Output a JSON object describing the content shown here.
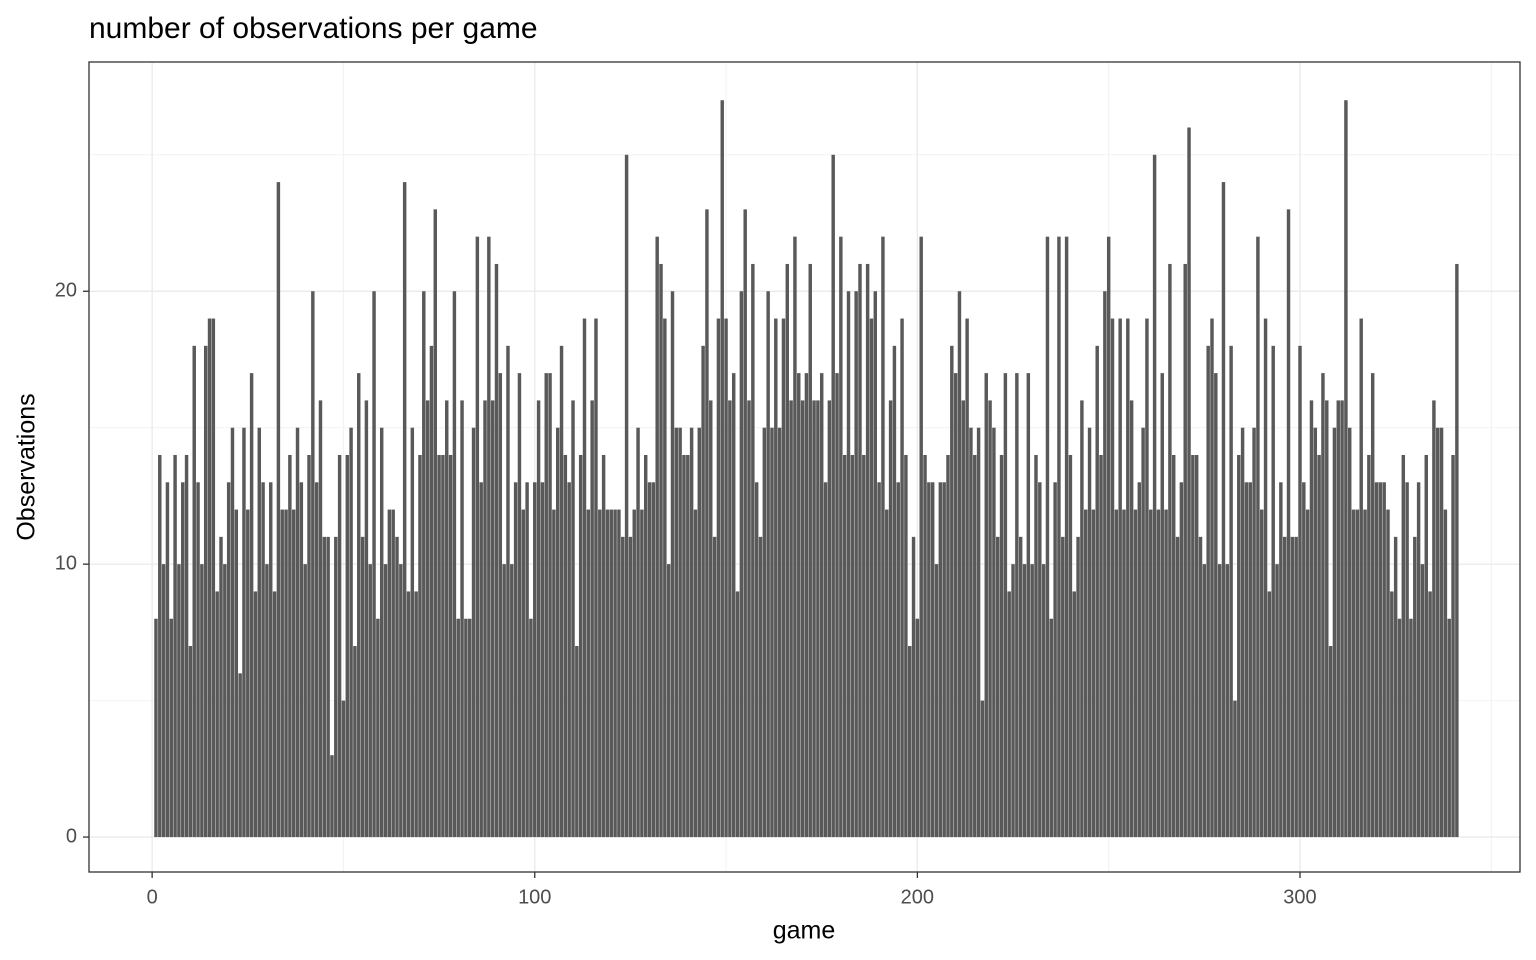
{
  "chart_data": {
    "type": "bar",
    "title": "number of observations per game",
    "x_label": "game",
    "y_label": "Observations",
    "color": "#595959",
    "grid": true,
    "xlim": [
      -16.5,
      357.5
    ],
    "ylim": [
      -1.28,
      28.4
    ],
    "xticks": [
      0,
      100,
      200,
      300
    ],
    "yticks": [
      0,
      10,
      20
    ],
    "x_minor_ticks": [
      50,
      150,
      250,
      350
    ],
    "y_minor_ticks": [
      5,
      15,
      25
    ],
    "x": [
      1,
      2,
      3,
      4,
      5,
      6,
      7,
      8,
      9,
      10,
      11,
      12,
      13,
      14,
      15,
      16,
      17,
      18,
      19,
      20,
      21,
      22,
      23,
      24,
      25,
      26,
      27,
      28,
      29,
      30,
      31,
      32,
      33,
      34,
      35,
      36,
      37,
      38,
      39,
      40,
      41,
      42,
      43,
      44,
      45,
      46,
      47,
      48,
      49,
      50,
      51,
      52,
      53,
      54,
      55,
      56,
      57,
      58,
      59,
      60,
      61,
      62,
      63,
      64,
      65,
      66,
      67,
      68,
      69,
      70,
      71,
      72,
      73,
      74,
      75,
      76,
      77,
      78,
      79,
      80,
      81,
      82,
      83,
      84,
      85,
      86,
      87,
      88,
      89,
      90,
      91,
      92,
      93,
      94,
      95,
      96,
      97,
      98,
      99,
      100,
      101,
      102,
      103,
      104,
      105,
      106,
      107,
      108,
      109,
      110,
      111,
      112,
      113,
      114,
      115,
      116,
      117,
      118,
      119,
      120,
      121,
      122,
      123,
      124,
      125,
      126,
      127,
      128,
      129,
      130,
      131,
      132,
      133,
      134,
      135,
      136,
      137,
      138,
      139,
      140,
      141,
      142,
      143,
      144,
      145,
      146,
      147,
      148,
      149,
      150,
      151,
      152,
      153,
      154,
      155,
      156,
      157,
      158,
      159,
      160,
      161,
      162,
      163,
      164,
      165,
      166,
      167,
      168,
      169,
      170,
      171,
      172,
      173,
      174,
      175,
      176,
      177,
      178,
      179,
      180,
      181,
      182,
      183,
      184,
      185,
      186,
      187,
      188,
      189,
      190,
      191,
      192,
      193,
      194,
      195,
      196,
      197,
      198,
      199,
      200,
      201,
      202,
      203,
      204,
      205,
      206,
      207,
      208,
      209,
      210,
      211,
      212,
      213,
      214,
      215,
      216,
      217,
      218,
      219,
      220,
      221,
      222,
      223,
      224,
      225,
      226,
      227,
      228,
      229,
      230,
      231,
      232,
      233,
      234,
      235,
      236,
      237,
      238,
      239,
      240,
      241,
      242,
      243,
      244,
      245,
      246,
      247,
      248,
      249,
      250,
      251,
      252,
      253,
      254,
      255,
      256,
      257,
      258,
      259,
      260,
      261,
      262,
      263,
      264,
      265,
      266,
      267,
      268,
      269,
      270,
      271,
      272,
      273,
      274,
      275,
      276,
      277,
      278,
      279,
      280,
      281,
      282,
      283,
      284,
      285,
      286,
      287,
      288,
      289,
      290,
      291,
      292,
      293,
      294,
      295,
      296,
      297,
      298,
      299,
      300,
      301,
      302,
      303,
      304,
      305,
      306,
      307,
      308,
      309,
      310,
      311,
      312,
      313,
      314,
      315,
      316,
      317,
      318,
      319,
      320,
      321,
      322,
      323,
      324,
      325,
      326,
      327,
      328,
      329,
      330,
      331,
      332,
      333,
      334,
      335,
      336,
      337,
      338,
      339,
      340,
      341
    ],
    "values": [
      8,
      14,
      10,
      13,
      8,
      14,
      10,
      13,
      14,
      7,
      18,
      13,
      10,
      18,
      19,
      19,
      9,
      11,
      10,
      13,
      15,
      12,
      6,
      15,
      12,
      17,
      9,
      15,
      13,
      10,
      13,
      9,
      24,
      12,
      12,
      14,
      12,
      15,
      13,
      10,
      14,
      20,
      13,
      16,
      11,
      11,
      3,
      11,
      14,
      5,
      14,
      15,
      7,
      17,
      11,
      16,
      10,
      20,
      8,
      15,
      10,
      12,
      12,
      11,
      10,
      24,
      9,
      15,
      9,
      14,
      20,
      16,
      18,
      23,
      14,
      14,
      16,
      14,
      20,
      8,
      16,
      8,
      8,
      15,
      22,
      13,
      16,
      22,
      16,
      21,
      17,
      10,
      18,
      10,
      13,
      17,
      12,
      13,
      8,
      13,
      16,
      13,
      17,
      17,
      12,
      15,
      18,
      14,
      13,
      16,
      7,
      14,
      19,
      12,
      16,
      19,
      12,
      14,
      12,
      12,
      12,
      12,
      11,
      25,
      11,
      12,
      15,
      12,
      14,
      13,
      13,
      22,
      21,
      19,
      10,
      20,
      15,
      15,
      14,
      14,
      15,
      12,
      15,
      18,
      23,
      16,
      11,
      19,
      27,
      19,
      16,
      17,
      9,
      20,
      23,
      16,
      21,
      13,
      11,
      15,
      20,
      15,
      19,
      15,
      19,
      21,
      16,
      22,
      17,
      16,
      17,
      21,
      16,
      16,
      17,
      13,
      16,
      25,
      17,
      22,
      14,
      20,
      14,
      20,
      21,
      14,
      21,
      19,
      20,
      13,
      22,
      12,
      16,
      18,
      13,
      19,
      14,
      7,
      11,
      8,
      22,
      14,
      13,
      13,
      10,
      13,
      13,
      14,
      18,
      17,
      20,
      16,
      19,
      15,
      14,
      15,
      5,
      17,
      16,
      15,
      11,
      14,
      17,
      9,
      10,
      17,
      11,
      10,
      17,
      10,
      14,
      13,
      10,
      22,
      8,
      13,
      22,
      11,
      22,
      14,
      9,
      11,
      16,
      12,
      15,
      12,
      18,
      14,
      20,
      22,
      19,
      12,
      19,
      12,
      19,
      16,
      12,
      13,
      15,
      19,
      12,
      25,
      12,
      17,
      12,
      21,
      14,
      11,
      13,
      21,
      26,
      14,
      14,
      11,
      10,
      18,
      19,
      17,
      10,
      24,
      10,
      18,
      5,
      14,
      15,
      13,
      13,
      15,
      22,
      12,
      19,
      9,
      18,
      10,
      13,
      11,
      23,
      11,
      11,
      18,
      13,
      12,
      16,
      15,
      14,
      17,
      16,
      7,
      15,
      16,
      16,
      27,
      15,
      12,
      12,
      19,
      12,
      14,
      17,
      13,
      13,
      13,
      12,
      9,
      11,
      8,
      14,
      13,
      8,
      11,
      13,
      10,
      14,
      9,
      16,
      15,
      15,
      12,
      8,
      14,
      21
    ]
  }
}
